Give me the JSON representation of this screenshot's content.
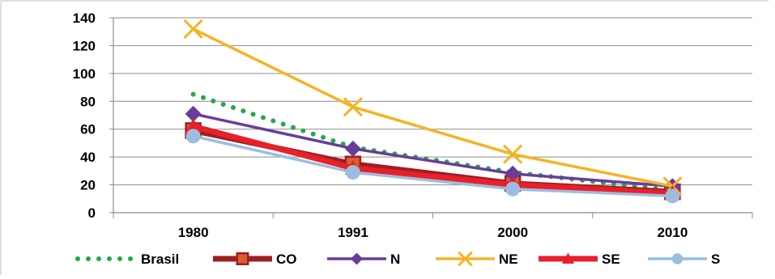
{
  "chart_data": {
    "type": "line",
    "title": "",
    "xlabel": "",
    "ylabel": "",
    "categories": [
      "1980",
      "1991",
      "2000",
      "2010"
    ],
    "ylim": [
      0,
      140
    ],
    "yticks": [
      0,
      20,
      40,
      60,
      80,
      100,
      120,
      140
    ],
    "grid": true,
    "legend_position": "bottom",
    "series": [
      {
        "name": "Brasil",
        "values": [
          85,
          47,
          29,
          16
        ],
        "color": "#22a84a",
        "style": "dotted",
        "marker": "none"
      },
      {
        "name": "CO",
        "values": [
          59,
          35,
          21,
          15
        ],
        "color": "#9e1f23",
        "style": "solid-thick",
        "marker": "square"
      },
      {
        "name": "N",
        "values": [
          71,
          46,
          28,
          19
        ],
        "color": "#6a3c9a",
        "style": "solid",
        "marker": "diamond"
      },
      {
        "name": "NE",
        "values": [
          132,
          76,
          42,
          19
        ],
        "color": "#f5b324",
        "style": "solid",
        "marker": "x"
      },
      {
        "name": "SE",
        "values": [
          62,
          32,
          20,
          14
        ],
        "color": "#e8202a",
        "style": "solid-thick",
        "marker": "triangle"
      },
      {
        "name": "S",
        "values": [
          55,
          29,
          17,
          12
        ],
        "color": "#9cbde0",
        "style": "solid",
        "marker": "circle"
      }
    ]
  }
}
